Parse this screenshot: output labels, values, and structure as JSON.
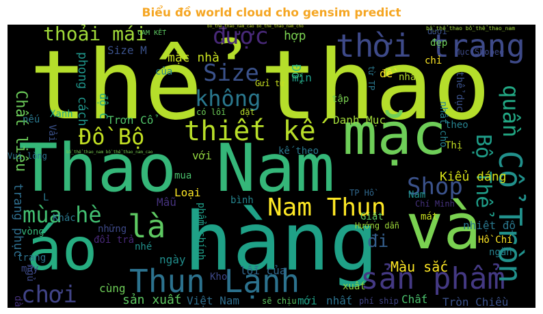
{
  "title": "Biểu đồ world cloud cho gensim predict",
  "title_color": "#f5a623",
  "background_color": "#000000",
  "words": [
    {
      "text": "thể thao",
      "color": "#b5de2b"
    },
    {
      "text": "hàng",
      "color": "#1fa187"
    },
    {
      "text": "Thao Nam",
      "color": "#35b779"
    },
    {
      "text": "mặc",
      "color": "#6ece58"
    },
    {
      "text": "và",
      "color": "#7ad151"
    },
    {
      "text": "áo",
      "color": "#26ad81"
    },
    {
      "text": "thời trang",
      "color": "#3e4a89"
    },
    {
      "text": "sản phẩm",
      "color": "#443983"
    },
    {
      "text": "Thun Lạnh",
      "color": "#2c728e"
    },
    {
      "text": "Cổ Tròn",
      "color": "#21918c"
    },
    {
      "text": "Nam Thun",
      "color": "#fde725"
    },
    {
      "text": "thiết kế",
      "color": "#b8de29"
    },
    {
      "text": "Đồ Bộ",
      "color": "#c2df23"
    },
    {
      "text": "Size",
      "color": "#3b528b"
    },
    {
      "text": "được",
      "color": "#482878"
    },
    {
      "text": "không",
      "color": "#2a788e"
    },
    {
      "text": "mùa hè",
      "color": "#42be71"
    },
    {
      "text": "là",
      "color": "#5ec962"
    },
    {
      "text": "chơi",
      "color": "#414487"
    },
    {
      "text": "Shop",
      "color": "#3b528b"
    },
    {
      "text": "Bộ Thể",
      "color": "#1f9e89"
    },
    {
      "text": "quần",
      "color": "#22a884"
    },
    {
      "text": "thoải mái",
      "color": "#a0da39"
    },
    {
      "text": "đi",
      "color": "#355f8d"
    },
    {
      "text": "Chất liệu",
      "color": "#6ccd5a"
    },
    {
      "text": "trang phục",
      "color": "#2e6e8e"
    },
    {
      "text": "phong cách",
      "color": "#1f968b"
    },
    {
      "text": "mặc nhà",
      "color": "#c8e020"
    },
    {
      "text": "Size M",
      "color": "#3b528b"
    },
    {
      "text": "Màu sắc",
      "color": "#fde725"
    },
    {
      "text": "Kiểu dáng",
      "color": "#d8e219"
    },
    {
      "text": "Danh Mục",
      "color": "#a0da39"
    },
    {
      "text": "Trơn Cổ",
      "color": "#52c569"
    },
    {
      "text": "nhiệt độ",
      "color": "#2a788e"
    },
    {
      "text": "sản xuất",
      "color": "#5ec962"
    },
    {
      "text": "Việt Nam",
      "color": "#2e6e8e"
    },
    {
      "text": "Tròn Chiều",
      "color": "#3b528b"
    },
    {
      "text": "Chất",
      "color": "#4ac16d"
    },
    {
      "text": "hợp",
      "color": "#7ad151"
    },
    {
      "text": "Mẫu",
      "color": "#46337e"
    },
    {
      "text": "Loại",
      "color": "#fde725"
    },
    {
      "text": "ngày",
      "color": "#218f8d"
    },
    {
      "text": "cùng",
      "color": "#6ece58"
    },
    {
      "text": "Kho",
      "color": "#3f4889"
    },
    {
      "text": "lỗi của",
      "color": "#31688e"
    },
    {
      "text": "mới",
      "color": "#1fa187"
    },
    {
      "text": "nhất",
      "color": "#2c728e"
    },
    {
      "text": "xuất",
      "color": "#90d743"
    },
    {
      "text": "mát",
      "color": "#c8e020"
    },
    {
      "text": "Hồ Chí",
      "color": "#fde725"
    },
    {
      "text": "ngắn",
      "color": "#26828e"
    },
    {
      "text": "Khác",
      "color": "#2a788e"
    },
    {
      "text": "vòng",
      "color": "#35b779"
    },
    {
      "text": "nhé",
      "color": "#21918c"
    },
    {
      "text": "những",
      "color": "#3e4a89"
    },
    {
      "text": "đổi trả",
      "color": "#482878"
    },
    {
      "text": "Giặt",
      "color": "#5ec962"
    },
    {
      "text": "Hướng dẫn",
      "color": "#9fda3a"
    },
    {
      "text": "Chí Minh",
      "color": "#46327e"
    },
    {
      "text": "TP Hồ",
      "color": "#31688e"
    },
    {
      "text": "bình",
      "color": "#25858e"
    },
    {
      "text": "mua",
      "color": "#4ac16d"
    },
    {
      "text": "với",
      "color": "#95d840"
    },
    {
      "text": "kế theo",
      "color": "#2a788e"
    },
    {
      "text": "Thị",
      "color": "#c2df23"
    },
    {
      "text": "theo",
      "color": "#26828e"
    },
    {
      "text": "Xanh",
      "color": "#22a884"
    },
    {
      "text": "Vui lòng",
      "color": "#2c728e"
    },
    {
      "text": "Vải",
      "color": "#3b528b"
    },
    {
      "text": "nếu",
      "color": "#2a788e"
    },
    {
      "text": "may",
      "color": "#3e4a89"
    },
    {
      "text": "tập",
      "color": "#7ad151"
    },
    {
      "text": "mịn",
      "color": "#1f9e89"
    },
    {
      "text": "nhà",
      "color": "#b5de2b"
    },
    {
      "text": "chỉ",
      "color": "#fde725"
    },
    {
      "text": "đẹp",
      "color": "#6ece58"
    },
    {
      "text": "dưới",
      "color": "#3b528b"
    },
    {
      "text": "Mục Shopee",
      "color": "#3e4a89"
    },
    {
      "text": "Gửi từ",
      "color": "#c8e020"
    },
    {
      "text": "của",
      "color": "#26828e"
    },
    {
      "text": "CAM KẾT",
      "color": "#5ec962"
    },
    {
      "text": "có lỗi",
      "color": "#6ece58"
    },
    {
      "text": "đặt",
      "color": "#b8de29"
    },
    {
      "text": "sẽ chịu",
      "color": "#5ec962"
    },
    {
      "text": "phí ship",
      "color": "#414487"
    },
    {
      "text": "trang",
      "color": "#2c728e"
    },
    {
      "text": "độ C",
      "color": "#22a884"
    },
    {
      "text": "Đồ",
      "color": "#35b779"
    },
    {
      "text": "phẩm chính",
      "color": "#1f9e89"
    },
    {
      "text": "nhất cho",
      "color": "#26828e"
    },
    {
      "text": "thể dục",
      "color": "#3b528b"
    },
    {
      "text": "từ TP",
      "color": "#2a788e"
    },
    {
      "text": "đề",
      "color": "#fde725"
    },
    {
      "text": "Nam",
      "color": "#21918c"
    },
    {
      "text": "L",
      "color": "#2a788e"
    },
    {
      "text": "dài",
      "color": "#46327e"
    },
    {
      "text": "ngủ",
      "color": "#3e4a89"
    },
    {
      "text": "bồ_thể_thao_nam_cao bồ_thể_thao_nam_cho",
      "color": "#c2df23"
    },
    {
      "text": "bồ_thể_thao bồ_thể_thao_nam",
      "color": "#a0da39"
    },
    {
      "text": "bồ_thể_thao_nam bồ_thể_thao_nam_cao",
      "color": "#7ad151"
    }
  ]
}
